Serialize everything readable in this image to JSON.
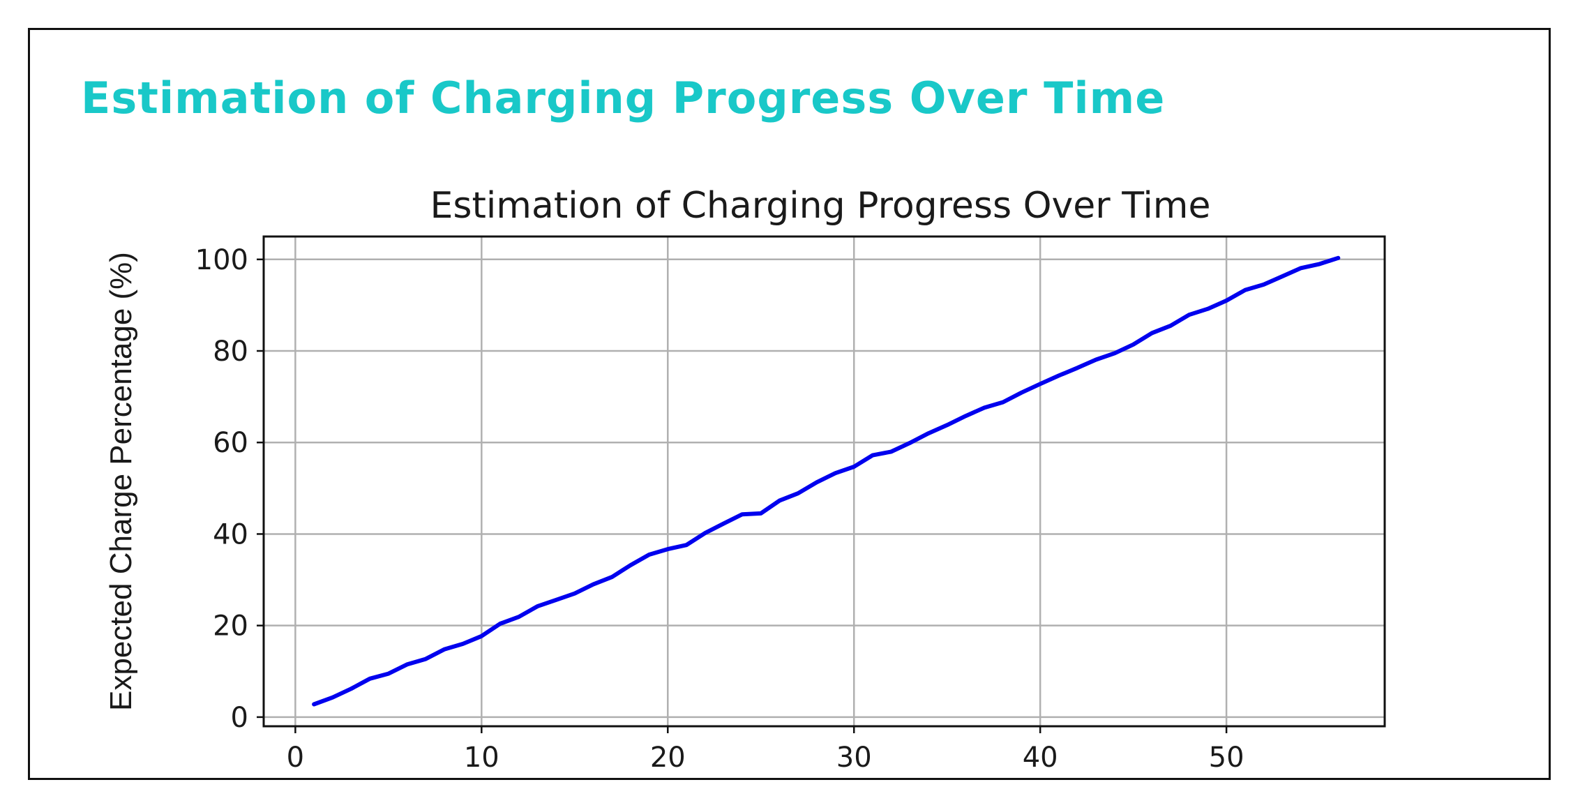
{
  "page": {
    "heading": "Estimation of Charging Progress Over Time",
    "heading_color": "#19c8c8"
  },
  "chart_data": {
    "type": "line",
    "title": "Estimation of Charging Progress Over Time",
    "xlabel": "",
    "ylabel": "Expected Charge Percentage (%)",
    "xlim": [
      -1.7,
      58.5
    ],
    "ylim": [
      -2,
      105
    ],
    "xticks": [
      0,
      10,
      20,
      30,
      40,
      50
    ],
    "yticks": [
      0,
      20,
      40,
      60,
      80,
      100
    ],
    "grid": true,
    "series": [
      {
        "color": "#0000ee",
        "x": [
          1,
          2,
          3,
          4,
          5,
          6,
          7,
          8,
          9,
          10,
          11,
          12,
          13,
          14,
          15,
          16,
          17,
          18,
          19,
          20,
          21,
          22,
          23,
          24,
          25,
          26,
          27,
          28,
          29,
          30,
          31,
          32,
          33,
          34,
          35,
          36,
          37,
          38,
          39,
          40,
          41,
          42,
          43,
          44,
          45,
          46,
          47,
          48,
          49,
          50,
          51,
          52,
          53,
          54,
          55,
          56
        ],
        "y": [
          2.8,
          4.3,
          6.2,
          8.4,
          9.5,
          11.5,
          12.7,
          14.8,
          16.0,
          17.7,
          20.4,
          21.9,
          24.2,
          25.6,
          27.0,
          29.0,
          30.6,
          33.2,
          35.5,
          36.7,
          37.6,
          40.2,
          42.3,
          44.3,
          44.5,
          47.3,
          48.9,
          51.3,
          53.3,
          54.7,
          57.2,
          58.0,
          59.9,
          62.0,
          63.8,
          65.8,
          67.6,
          68.8,
          70.9,
          72.8,
          74.6,
          76.3,
          78.1,
          79.5,
          81.4,
          83.9,
          85.5,
          87.9,
          89.2,
          91.0,
          93.3,
          94.5,
          96.3,
          98.1,
          99.0,
          100.3
        ]
      }
    ]
  }
}
